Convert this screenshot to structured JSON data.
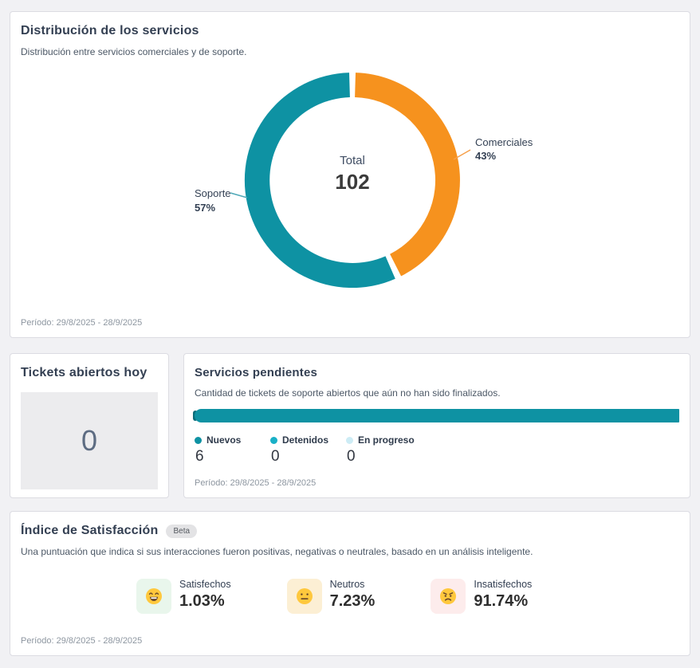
{
  "colors": {
    "teal": "#0e92a3",
    "orange": "#f6921e",
    "cyan": "#19b0c7",
    "pale_cyan": "#cdecf5",
    "dark_teal_cap": "#0b6c79",
    "green_bg": "#e9f6ec",
    "tan_bg": "#fcefd4",
    "pink_bg": "#fdecec"
  },
  "distribution_card": {
    "title": "Distribución de los servicios",
    "description": "Distribución entre servicios comerciales y de soporte.",
    "center_label": "Total",
    "center_value": "102",
    "period": "Período: 29/8/2025 - 28/9/2025"
  },
  "chart_data": [
    {
      "type": "pie",
      "donut": true,
      "title": "Distribución de los servicios",
      "labels": [
        "Comerciales",
        "Soporte"
      ],
      "values": [
        43,
        57
      ],
      "percent_labels": [
        "43%",
        "57%"
      ],
      "colors": [
        "#f6921e",
        "#0e92a3"
      ],
      "center_label": "Total",
      "center_value": 102,
      "legend_position": "callout-labels"
    },
    {
      "type": "bar",
      "orientation": "horizontal-stacked",
      "title": "Servicios pendientes",
      "categories": [
        "Nuevos",
        "Detenidos",
        "En progreso"
      ],
      "values": [
        6,
        0,
        0
      ],
      "colors": [
        "#0e92a3",
        "#19b0c7",
        "#cdecf5"
      ]
    }
  ],
  "tickets_card": {
    "title": "Tickets abiertos hoy",
    "value": "0"
  },
  "pending_card": {
    "title": "Servicios pendientes",
    "description": "Cantidad de tickets de soporte abiertos que aún no han sido finalizados.",
    "legend": [
      {
        "label": "Nuevos",
        "value": "6",
        "color": "#0e92a3"
      },
      {
        "label": "Detenidos",
        "value": "0",
        "color": "#19b0c7"
      },
      {
        "label": "En progreso",
        "value": "0",
        "color": "#cdecf5"
      }
    ],
    "period": "Período: 29/8/2025 - 28/9/2025"
  },
  "satisfaction_card": {
    "title": "Índice de Satisfacción",
    "badge": "Beta",
    "description": "Una puntuación que indica si sus interacciones fueron positivas, negativas o neutrales, basado en un análisis inteligente.",
    "stats": [
      {
        "label": "Satisfechos",
        "value": "1.03%",
        "icon": "happy-emoji",
        "bg": "#e9f6ec"
      },
      {
        "label": "Neutros",
        "value": "7.23%",
        "icon": "neutral-emoji",
        "bg": "#fcefd4"
      },
      {
        "label": "Insatisfechos",
        "value": "91.74%",
        "icon": "angry-emoji",
        "bg": "#fdecec"
      }
    ],
    "period": "Período: 29/8/2025 - 28/9/2025"
  }
}
